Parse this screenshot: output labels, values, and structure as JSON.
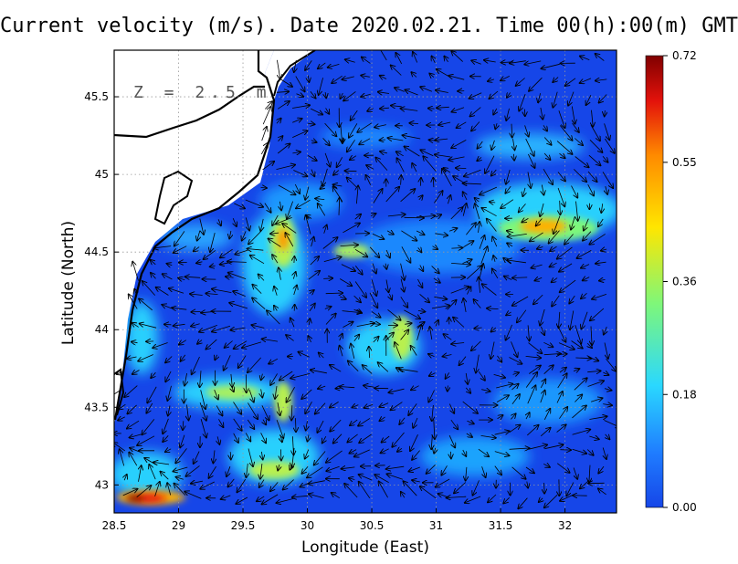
{
  "title": "Current velocity (m/s). Date 2020.02.21. Time 00(h):00(m) GMT",
  "depth_label": "Z = 2.5 m",
  "x_axis": {
    "label": "Longitude (East)",
    "range": [
      28.5,
      32.4
    ],
    "ticks": [
      28.5,
      29,
      29.5,
      30,
      30.5,
      31,
      31.5,
      32
    ],
    "tick_labels": [
      "28.5",
      "29",
      "29.5",
      "30",
      "30.5",
      "31",
      "31.5",
      "32"
    ]
  },
  "y_axis": {
    "label": "Latitude (North)",
    "range": [
      42.82,
      45.8
    ],
    "ticks": [
      43,
      43.5,
      44,
      44.5,
      45,
      45.5
    ],
    "tick_labels": [
      "43",
      "43.5",
      "44",
      "44.5",
      "45",
      "45.5"
    ]
  },
  "grid": "dotted",
  "colorbar": {
    "range": [
      0.0,
      0.72
    ],
    "tick_values": [
      0.0,
      0.18,
      0.36,
      0.55,
      0.72
    ],
    "tick_labels": [
      "0.00",
      "0.18",
      "0.36",
      "0.55",
      "0.72"
    ],
    "colors": [
      "#1646e8",
      "#1f7cff",
      "#2ad8ff",
      "#7ef77a",
      "#ffe600",
      "#ff8a00",
      "#e3120b",
      "#800000"
    ]
  },
  "colors": {
    "land": "#ffffff",
    "coast": "#000000",
    "arrows": "#000000"
  }
}
